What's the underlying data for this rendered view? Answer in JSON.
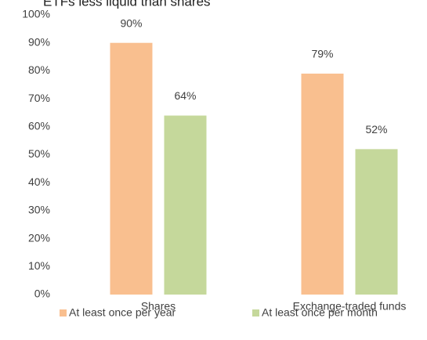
{
  "chart_data": {
    "type": "bar",
    "title": "ETFs less liquid than shares",
    "categories": [
      "Shares",
      "Exchange-traded funds"
    ],
    "series": [
      {
        "name": "At least once per year",
        "color": "#f9bf8f",
        "values": [
          90,
          79
        ],
        "value_labels": [
          "90%",
          "79%"
        ]
      },
      {
        "name": "At least once per month",
        "color": "#c5d89b",
        "values": [
          64,
          52
        ],
        "value_labels": [
          "64%",
          "52%"
        ]
      }
    ],
    "ylim": [
      0,
      100
    ],
    "yticks": [
      {
        "value": 0,
        "label": "0%"
      },
      {
        "value": 10,
        "label": "10%"
      },
      {
        "value": 20,
        "label": "20%"
      },
      {
        "value": 30,
        "label": "30%"
      },
      {
        "value": 40,
        "label": "40%"
      },
      {
        "value": 50,
        "label": "50%"
      },
      {
        "value": 60,
        "label": "60%"
      },
      {
        "value": 70,
        "label": "70%"
      },
      {
        "value": 80,
        "label": "80%"
      },
      {
        "value": 90,
        "label": "90%"
      },
      {
        "value": 100,
        "label": "100%"
      }
    ],
    "grid": false,
    "legend": "bottom"
  }
}
